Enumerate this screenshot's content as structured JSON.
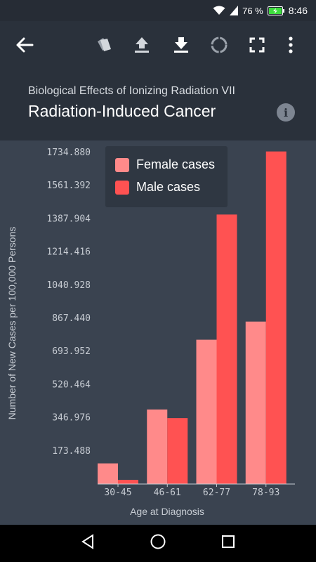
{
  "status_bar": {
    "battery_percent": "76 %",
    "time": "8:46"
  },
  "header": {
    "subtitle": "Biological Effects of Ionizing Radiation VII",
    "title": "Radiation-Induced Cancer",
    "icons": [
      "back-arrow-icon",
      "tag-icon",
      "upload-icon",
      "download-icon",
      "refresh-ring-icon",
      "fullscreen-icon",
      "more-vert-icon",
      "info-icon"
    ]
  },
  "colors": {
    "female": "#ff8a8a",
    "male": "#ff5252",
    "background": "#3a4350",
    "header": "#2a313b"
  },
  "chart_data": {
    "type": "bar",
    "title": "Radiation-Induced Cancer",
    "subtitle": "Biological Effects of Ionizing Radiation VII",
    "xlabel": "Age at Diagnosis",
    "ylabel": "Number of New Cases per 100,000 Persons",
    "categories": [
      "30-45",
      "46-61",
      "62-77",
      "78-93"
    ],
    "series": [
      {
        "name": "Female cases",
        "color": "#ff8a8a",
        "values": [
          108,
          390,
          755,
          850
        ]
      },
      {
        "name": "Male cases",
        "color": "#ff5252",
        "values": [
          22,
          345,
          1410,
          1740
        ]
      }
    ],
    "yticks": [
      "173.488",
      "346.976",
      "520.464",
      "693.952",
      "867.440",
      "1040.928",
      "1214.416",
      "1387.904",
      "1561.392",
      "1734.880"
    ],
    "ylim": [
      0,
      1734.88
    ],
    "legend": "top-center",
    "grid": false
  }
}
